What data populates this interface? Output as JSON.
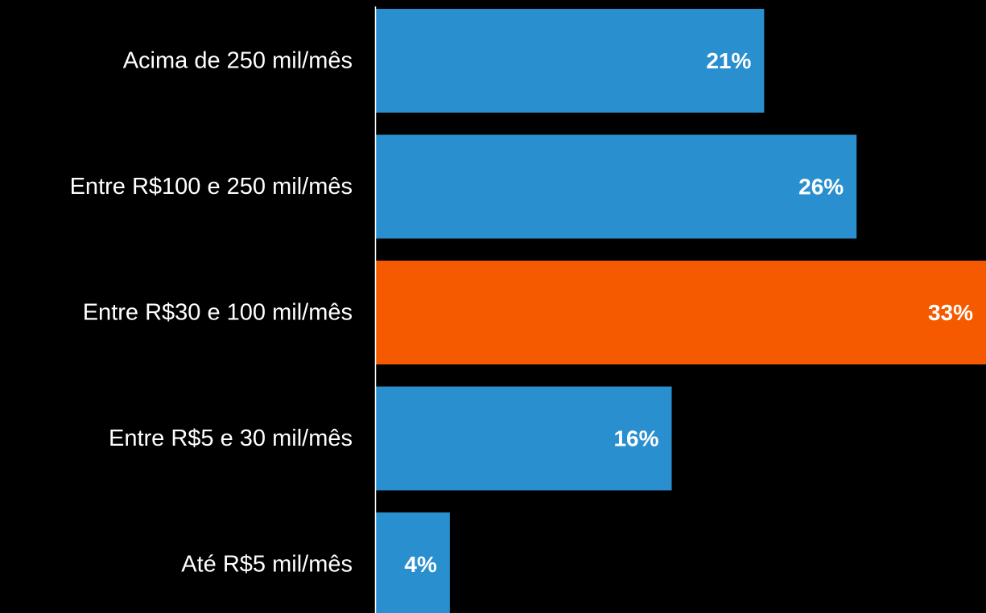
{
  "chart_data": {
    "type": "bar",
    "orientation": "horizontal",
    "categories": [
      "Acima de 250 mil/mês",
      "Entre R$100 e 250 mil/mês",
      "Entre R$30 e 100 mil/mês",
      "Entre R$5 e 30 mil/mês",
      "Até R$5 mil/mês"
    ],
    "values": [
      21,
      26,
      33,
      16,
      4
    ],
    "value_labels": [
      "21%",
      "26%",
      "33%",
      "16%",
      "4%"
    ],
    "highlight_index": 2,
    "xlim": [
      0,
      33
    ],
    "grid": false,
    "legend": "none",
    "colors": {
      "bar": "#2a8fcf",
      "highlight": "#f55a00",
      "axis": "#ffffff",
      "text": "#ffffff",
      "background": "#000000"
    }
  }
}
